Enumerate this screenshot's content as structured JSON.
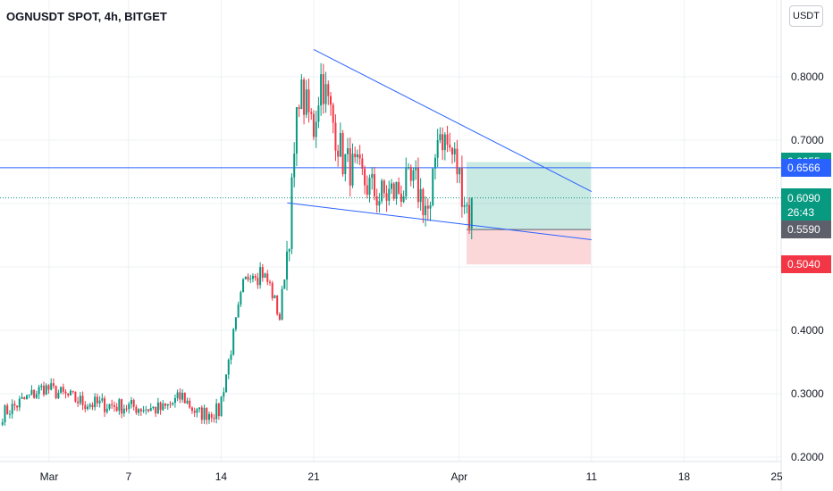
{
  "header": {
    "title": "OGNUSDT SPOT, 4h, BITGET"
  },
  "currency_button": {
    "label": "USDT"
  },
  "price_tags": {
    "target": {
      "value": "0.6655",
      "color": "#089981"
    },
    "line": {
      "value": "0.6566",
      "color": "#2962ff"
    },
    "last": {
      "value": "0.6090",
      "countdown": "26:43",
      "color": "#089981"
    },
    "entry": {
      "value": "0.5590",
      "color": "#5d606b"
    },
    "stop": {
      "value": "0.5040",
      "color": "#f23645"
    }
  },
  "colors": {
    "up": "#089981",
    "down": "#f23645",
    "trendline": "#2962ff",
    "grid": "#eef0f3"
  },
  "chart_data": {
    "type": "candlestick",
    "title": "OGNUSDT SPOT, 4h, BITGET",
    "y_axis": {
      "ticks": [
        "0.8000",
        "0.7000",
        "0.4000",
        "0.3000",
        "0.2000"
      ],
      "range": [
        0.19,
        0.86
      ]
    },
    "x_axis": {
      "ticks": [
        "Mar",
        "7",
        "14",
        "21",
        "Apr",
        "11",
        "18",
        "25"
      ]
    },
    "horizontal_line": 0.6566,
    "position": {
      "entry": 0.559,
      "target": 0.6655,
      "stop": 0.504
    },
    "trendlines": [
      {
        "name": "upper",
        "from": [
          "Mar 21",
          0.843
        ],
        "to": [
          "Apr 11",
          0.619
        ]
      },
      {
        "name": "lower",
        "from": [
          "Mar 19",
          0.601
        ],
        "to": [
          "Apr 11",
          0.543
        ]
      }
    ],
    "segments": [
      {
        "from": 0,
        "to": 17,
        "start": 0.268,
        "end": 0.31
      },
      {
        "from": 17,
        "to": 34,
        "start": 0.31,
        "end": 0.285
      },
      {
        "from": 34,
        "to": 66,
        "start": 0.285,
        "end": 0.275
      },
      {
        "from": 66,
        "to": 74,
        "start": 0.275,
        "end": 0.296
      },
      {
        "from": 74,
        "to": 80,
        "start": 0.296,
        "end": 0.268
      },
      {
        "from": 80,
        "to": 89,
        "start": 0.268,
        "end": 0.272
      },
      {
        "from": 89,
        "to": 99,
        "start": 0.272,
        "end": 0.47
      },
      {
        "from": 99,
        "to": 104,
        "start": 0.47,
        "end": 0.51
      },
      {
        "from": 104,
        "to": 110,
        "start": 0.51,
        "end": 0.47
      },
      {
        "from": 110,
        "to": 114,
        "start": 0.47,
        "end": 0.42
      },
      {
        "from": 114,
        "to": 118,
        "start": 0.42,
        "end": 0.56
      },
      {
        "from": 118,
        "to": 122,
        "start": 0.56,
        "end": 0.78
      },
      {
        "from": 122,
        "to": 128,
        "start": 0.78,
        "end": 0.72
      },
      {
        "from": 128,
        "to": 131,
        "start": 0.72,
        "end": 0.8
      },
      {
        "from": 131,
        "to": 140,
        "start": 0.8,
        "end": 0.67
      },
      {
        "from": 140,
        "to": 155,
        "start": 0.67,
        "end": 0.61
      },
      {
        "from": 155,
        "to": 170,
        "start": 0.61,
        "end": 0.63
      },
      {
        "from": 170,
        "to": 176,
        "start": 0.63,
        "end": 0.58
      },
      {
        "from": 176,
        "to": 179,
        "start": 0.58,
        "end": 0.72
      },
      {
        "from": 179,
        "to": 186,
        "start": 0.72,
        "end": 0.67
      },
      {
        "from": 186,
        "to": 192,
        "start": 0.67,
        "end": 0.58
      },
      {
        "from": 192,
        "to": 193,
        "start": 0.58,
        "end": 0.609
      }
    ]
  }
}
